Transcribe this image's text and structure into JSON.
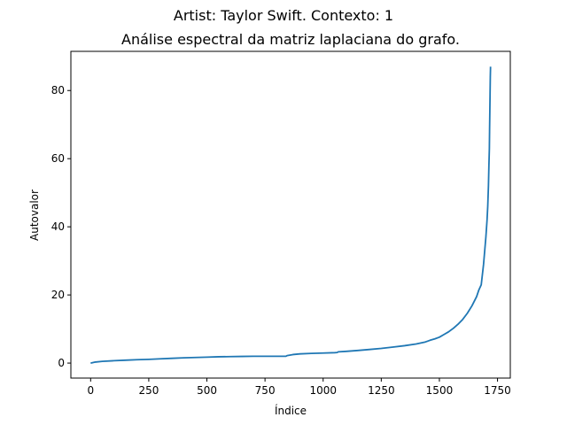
{
  "chart_data": {
    "type": "line",
    "suptitle": "Artist: Taylor Swift. Contexto: 1",
    "title": "Análise espectral da matriz laplaciana do grafo.",
    "xlabel": "Índice",
    "ylabel": "Autovalor",
    "xlim": [
      -85,
      1805
    ],
    "ylim": [
      -4.4,
      91.5
    ],
    "xticks": [
      0,
      250,
      500,
      750,
      1000,
      1250,
      1500,
      1750
    ],
    "yticks": [
      0,
      20,
      40,
      60,
      80
    ],
    "grid": false,
    "series": [
      {
        "color": "#1f77b4",
        "x": [
          0,
          20,
          50,
          100,
          150,
          200,
          250,
          300,
          350,
          400,
          450,
          500,
          550,
          600,
          650,
          700,
          750,
          800,
          840,
          845,
          870,
          900,
          950,
          1000,
          1050,
          1060,
          1065,
          1100,
          1150,
          1200,
          1250,
          1300,
          1350,
          1400,
          1440,
          1460,
          1480,
          1500,
          1520,
          1540,
          1560,
          1580,
          1600,
          1620,
          1640,
          1660,
          1670,
          1680,
          1690,
          1695,
          1700,
          1705,
          1708,
          1711,
          1713,
          1715,
          1716,
          1717,
          1718,
          1719,
          1720
        ],
        "y": [
          0.0,
          0.3,
          0.5,
          0.7,
          0.85,
          1.0,
          1.1,
          1.25,
          1.4,
          1.55,
          1.65,
          1.75,
          1.85,
          1.9,
          1.95,
          2.0,
          2.0,
          2.0,
          2.0,
          2.2,
          2.5,
          2.7,
          2.85,
          2.95,
          3.05,
          3.1,
          3.3,
          3.45,
          3.7,
          4.0,
          4.3,
          4.7,
          5.1,
          5.6,
          6.2,
          6.7,
          7.1,
          7.6,
          8.4,
          9.2,
          10.2,
          11.4,
          12.8,
          14.6,
          16.8,
          19.5,
          21.5,
          23.0,
          29.0,
          33.0,
          37.0,
          42.0,
          46.0,
          52.0,
          58.0,
          63.0,
          69.0,
          74.0,
          79.0,
          84.0,
          87.0
        ]
      }
    ]
  }
}
